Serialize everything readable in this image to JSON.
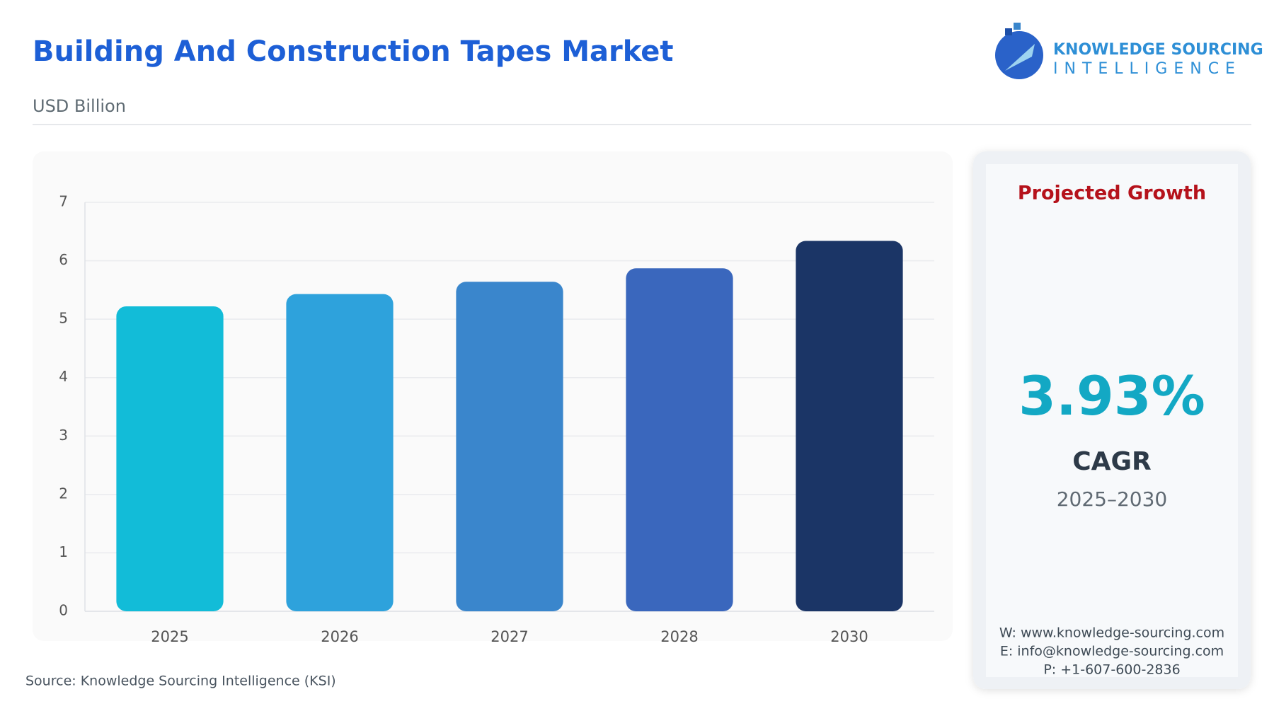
{
  "chart_data": {
    "type": "bar",
    "title": "Building And Construction Tapes Market",
    "subtitle": "USD Billion",
    "categories": [
      "2025",
      "2026",
      "2027",
      "2028",
      "2030"
    ],
    "values": [
      5.22,
      5.43,
      5.64,
      5.87,
      6.34
    ],
    "colors": [
      "#12bcd8",
      "#2ea2dc",
      "#3a86cc",
      "#3a67bd",
      "#1b3566"
    ],
    "ylim": [
      0,
      7
    ],
    "yticks": [
      0,
      1,
      2,
      3,
      4,
      5,
      6,
      7
    ],
    "grid": true,
    "source": "Source: Knowledge Sourcing Intelligence (KSI)"
  },
  "logo": {
    "line1": "KNOWLEDGE SOURCING",
    "line2": "INTELLIGENCE"
  },
  "panel": {
    "heading": "Projected Growth",
    "value": "3.93%",
    "label": "CAGR",
    "period": "2025–2030",
    "contact": [
      "W: www.knowledge-sourcing.com",
      "E: info@knowledge-sourcing.com",
      "P: +1-607-600-2836"
    ]
  }
}
